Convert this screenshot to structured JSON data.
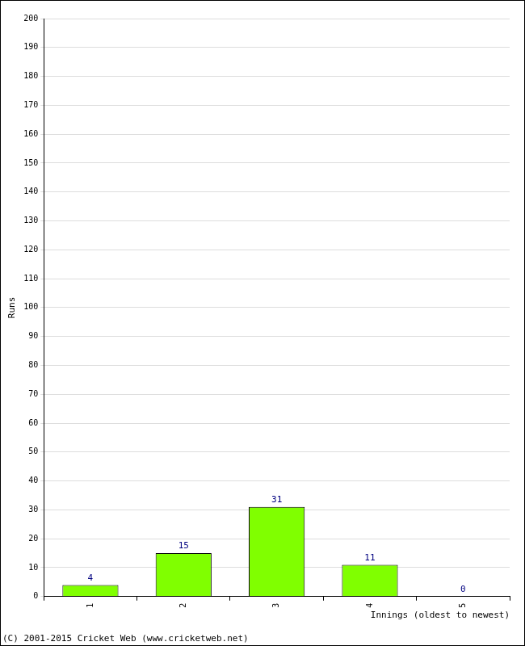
{
  "chart_data": {
    "type": "bar",
    "x_label": "Innings (oldest to newest)",
    "y_label": "Runs",
    "annotations": [
      "(C) 2001-2015 Cricket Web (www.cricketweb.net)"
    ],
    "categories": [
      "1",
      "2",
      "3",
      "4",
      "5"
    ],
    "values": [
      4,
      15,
      31,
      11,
      0
    ],
    "color": "#80ff00",
    "ylim": [
      0,
      200
    ],
    "yticks": [
      0,
      10,
      20,
      30,
      40,
      50,
      60,
      70,
      80,
      90,
      100,
      110,
      120,
      130,
      140,
      150,
      160,
      170,
      180,
      190,
      200
    ],
    "grid": true,
    "data_labels": true
  }
}
